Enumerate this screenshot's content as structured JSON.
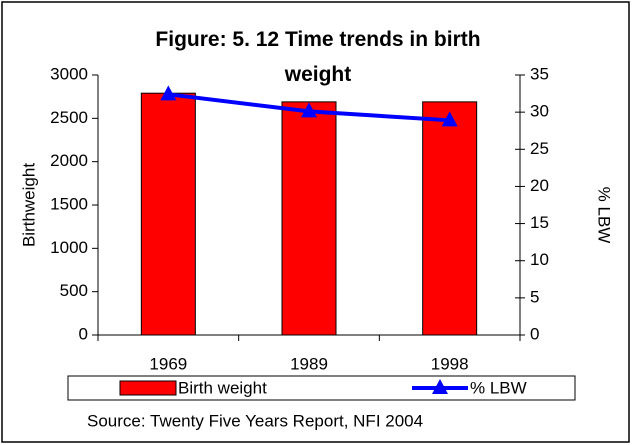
{
  "chart_data": {
    "type": "bar",
    "title": "Figure: 5. 12 Time trends in birth weight",
    "categories": [
      "1969",
      "1989",
      "1998"
    ],
    "series": [
      {
        "name": "Birth weight",
        "color": "#ff0000",
        "type": "bar",
        "values": [
          2790,
          2690,
          2690
        ]
      },
      {
        "name": "% LBW",
        "color": "#0000ff",
        "type": "line",
        "axis": "y2",
        "values": [
          32.4,
          30.1,
          28.9
        ]
      }
    ],
    "ylabel": "Birthweight",
    "y2label": "% LBW",
    "ylim": [
      0,
      3000
    ],
    "yticks": [
      0,
      500,
      1000,
      1500,
      2000,
      2500,
      3000
    ],
    "y2lim": [
      0,
      35
    ],
    "y2ticks": [
      0,
      5,
      10,
      15,
      20,
      25,
      30,
      35
    ],
    "source": "Source: Twenty Five Years Report, NFI 2004"
  }
}
